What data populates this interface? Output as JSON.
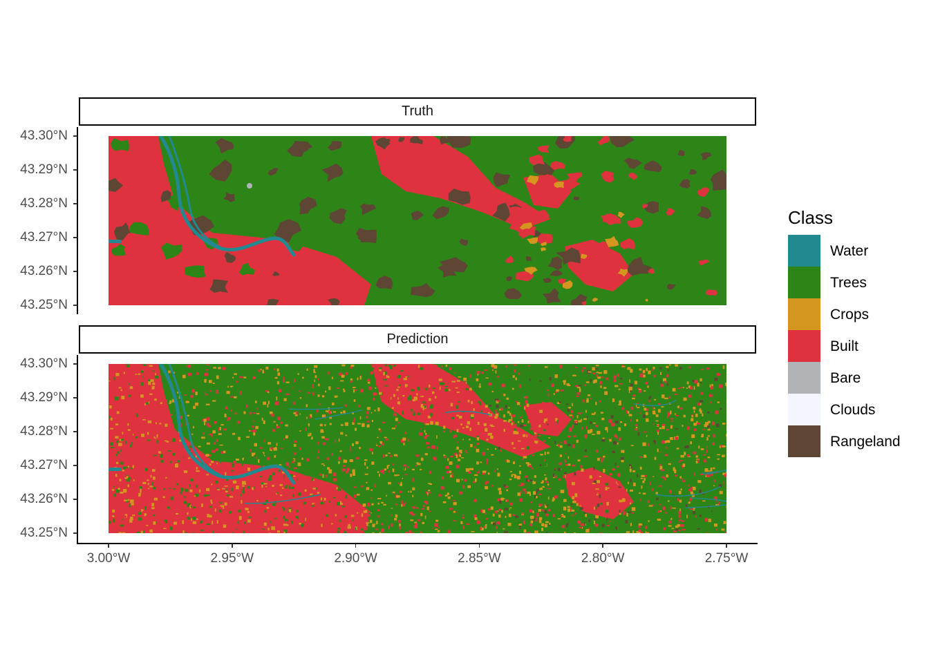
{
  "map": {
    "facets": [
      {
        "id": "truth",
        "label": "Truth"
      },
      {
        "id": "prediction",
        "label": "Prediction"
      }
    ],
    "y_ticks": [
      {
        "value": 43.3,
        "label": "43.30°N"
      },
      {
        "value": 43.29,
        "label": "43.29°N"
      },
      {
        "value": 43.28,
        "label": "43.28°N"
      },
      {
        "value": 43.27,
        "label": "43.27°N"
      },
      {
        "value": 43.26,
        "label": "43.26°N"
      },
      {
        "value": 43.25,
        "label": "43.25°N"
      }
    ],
    "x_ticks": [
      {
        "value": -3.0,
        "label": "3.00°W"
      },
      {
        "value": -2.95,
        "label": "2.95°W"
      },
      {
        "value": -2.9,
        "label": "2.90°W"
      },
      {
        "value": -2.85,
        "label": "2.85°W"
      },
      {
        "value": -2.8,
        "label": "2.80°W"
      },
      {
        "value": -2.75,
        "label": "2.75°W"
      }
    ],
    "lon_range": [
      -3.0,
      -2.75
    ],
    "lat_range": [
      43.25,
      43.3
    ],
    "legend": {
      "title": "Class",
      "position": "right",
      "items": [
        {
          "label": "Water",
          "color": "#21898F"
        },
        {
          "label": "Trees",
          "color": "#2E8517"
        },
        {
          "label": "Crops",
          "color": "#D4961F"
        },
        {
          "label": "Built",
          "color": "#DE323F"
        },
        {
          "label": "Bare",
          "color": "#B0B4B6"
        },
        {
          "label": "Clouds",
          "color": "#F3F6FF"
        },
        {
          "label": "Rangeland",
          "color": "#5E4635"
        }
      ]
    }
  }
}
